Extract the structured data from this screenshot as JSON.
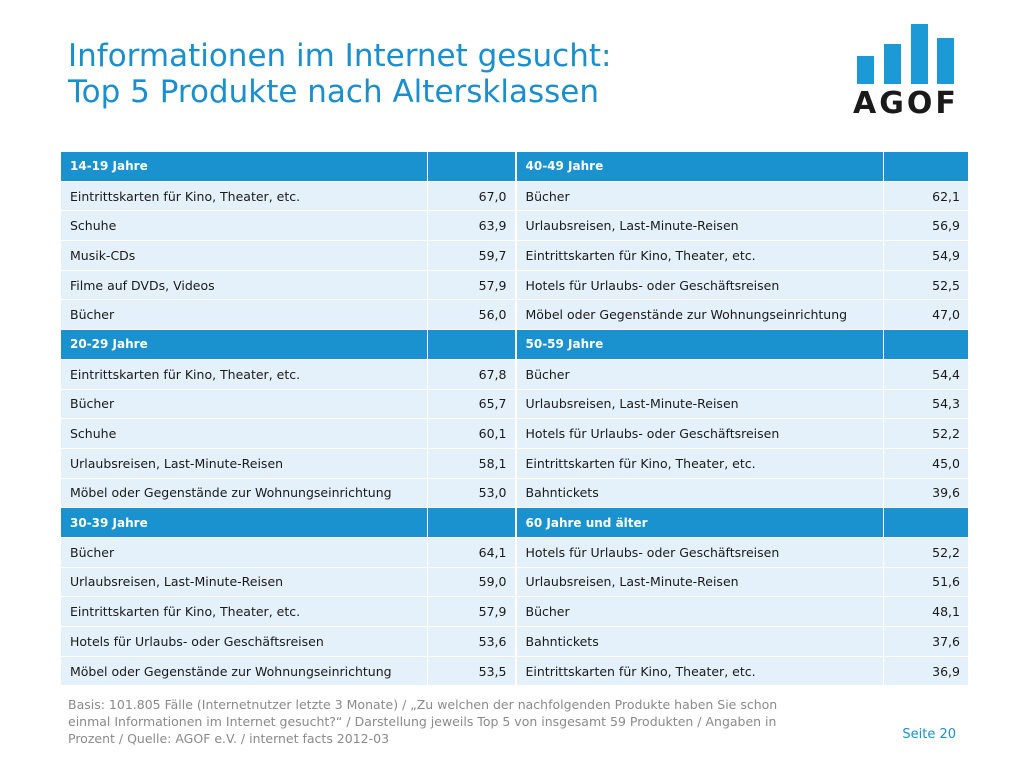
{
  "title": {
    "line1": "Informationen im Internet gesucht:",
    "line2": "Top 5 Produkte nach Altersklassen"
  },
  "logo": {
    "text": "AGOF"
  },
  "table": {
    "rows": [
      {
        "type": "section",
        "left_label": "14-19 Jahre",
        "right_label": "40-49 Jahre"
      },
      {
        "type": "data",
        "left_label": "Eintrittskarten für Kino, Theater, etc.",
        "left_value": "67,0",
        "right_label": "Bücher",
        "right_value": "62,1"
      },
      {
        "type": "data",
        "left_label": "Schuhe",
        "left_value": "63,9",
        "right_label": "Urlaubsreisen, Last-Minute-Reisen",
        "right_value": "56,9"
      },
      {
        "type": "data",
        "left_label": "Musik-CDs",
        "left_value": "59,7",
        "right_label": "Eintrittskarten für Kino, Theater, etc.",
        "right_value": "54,9"
      },
      {
        "type": "data",
        "left_label": "Filme auf DVDs, Videos",
        "left_value": "57,9",
        "right_label": "Hotels für Urlaubs- oder Geschäftsreisen",
        "right_value": "52,5"
      },
      {
        "type": "data",
        "left_label": "Bücher",
        "left_value": "56,0",
        "right_label": "Möbel oder Gegenstände zur Wohnungseinrichtung",
        "right_value": "47,0"
      },
      {
        "type": "section",
        "left_label": "20-29 Jahre",
        "right_label": "50-59 Jahre"
      },
      {
        "type": "data",
        "left_label": "Eintrittskarten für Kino, Theater, etc.",
        "left_value": "67,8",
        "right_label": "Bücher",
        "right_value": "54,4"
      },
      {
        "type": "data",
        "left_label": "Bücher",
        "left_value": "65,7",
        "right_label": "Urlaubsreisen, Last-Minute-Reisen",
        "right_value": "54,3"
      },
      {
        "type": "data",
        "left_label": "Schuhe",
        "left_value": "60,1",
        "right_label": "Hotels für Urlaubs- oder Geschäftsreisen",
        "right_value": "52,2"
      },
      {
        "type": "data",
        "left_label": "Urlaubsreisen, Last-Minute-Reisen",
        "left_value": "58,1",
        "right_label": "Eintrittskarten für Kino, Theater, etc.",
        "right_value": "45,0"
      },
      {
        "type": "data",
        "left_label": "Möbel oder Gegenstände zur Wohnungseinrichtung",
        "left_value": "53,0",
        "right_label": "Bahntickets",
        "right_value": "39,6"
      },
      {
        "type": "section",
        "left_label": "30-39 Jahre",
        "right_label": "60 Jahre und älter"
      },
      {
        "type": "data",
        "left_label": "Bücher",
        "left_value": "64,1",
        "right_label": "Hotels für Urlaubs- oder Geschäftsreisen",
        "right_value": "52,2"
      },
      {
        "type": "data",
        "left_label": "Urlaubsreisen, Last-Minute-Reisen",
        "left_value": "59,0",
        "right_label": "Urlaubsreisen, Last-Minute-Reisen",
        "right_value": "51,6"
      },
      {
        "type": "data",
        "left_label": "Eintrittskarten für Kino, Theater, etc.",
        "left_value": "57,9",
        "right_label": "Bücher",
        "right_value": "48,1"
      },
      {
        "type": "data",
        "left_label": "Hotels für Urlaubs- oder Geschäftsreisen",
        "left_value": "53,6",
        "right_label": "Bahntickets",
        "right_value": "37,6"
      },
      {
        "type": "data",
        "left_label": "Möbel oder Gegenstände zur Wohnungseinrichtung",
        "left_value": "53,5",
        "right_label": "Eintrittskarten für Kino, Theater, etc.",
        "right_value": "36,9"
      }
    ]
  },
  "footnote": {
    "line1": "Basis: 101.805 Fälle (Internetnutzer letzte 3 Monate) / „Zu welchen der nachfolgenden Produkte haben Sie schon",
    "line2": "einmal Informationen im Internet gesucht?“ / Darstellung jeweils Top 5 von insgesamt 59 Produkten / Angaben in",
    "line3": "Prozent / Quelle: AGOF e.V. / internet facts 2012-03"
  },
  "page_number": "Seite 20",
  "colors": {
    "accent": "#1a8fce",
    "section_header": "#1992cf",
    "row_background": "#e4f1fb"
  }
}
